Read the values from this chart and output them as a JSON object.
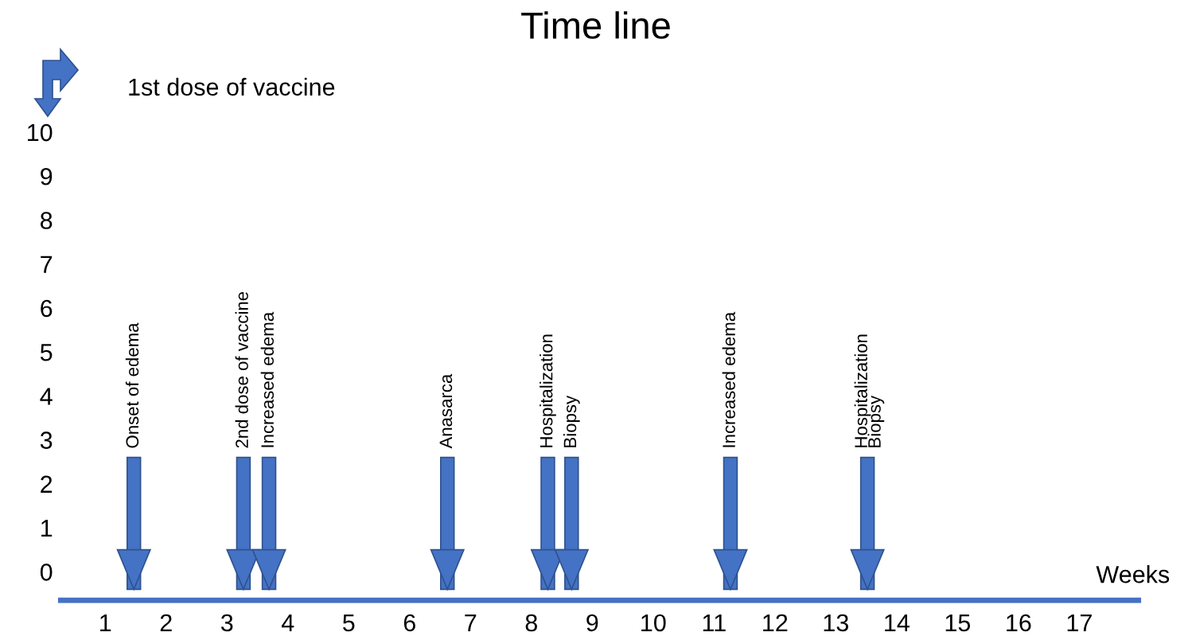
{
  "chart_data": {
    "type": "bar",
    "title": "Time line",
    "xlabel": "Weeks",
    "x": [
      1.47,
      3.27,
      3.69,
      6.62,
      8.27,
      8.66,
      11.27,
      13.52
    ],
    "base": [
      2.6,
      2.6,
      2.6,
      2.6,
      2.6,
      2.6,
      2.6,
      2.6
    ],
    "values": [
      -3.0,
      -3.0,
      -3.0,
      -3.0,
      -3.0,
      -3.0,
      -3.0,
      -3.0
    ],
    "color": "#4472c4",
    "xlim": [
      0.27,
      17.97
    ],
    "ylim": [
      -0.65,
      10
    ],
    "xticks": [
      1,
      2,
      3,
      4,
      5,
      6,
      7,
      8,
      9,
      10,
      11,
      12,
      13,
      14,
      15,
      16,
      17
    ],
    "yticks": [
      0,
      1,
      2,
      3,
      4,
      5,
      6,
      7,
      8,
      9,
      10
    ],
    "grid": false,
    "legend": false,
    "annotations": [
      "1st dose of vaccine",
      {
        "text": "Onset of edema",
        "x": 1.47,
        "y": 2.6
      },
      {
        "text": "2nd dose of vaccine",
        "x": 3.27,
        "y": 2.6
      },
      {
        "text": "Increased edema",
        "x": 3.69,
        "y": 2.6
      },
      {
        "text": "Anasarca",
        "x": 6.62,
        "y": 2.6
      },
      {
        "text": "Hospitalization",
        "x": 8.27,
        "y": 2.6
      },
      {
        "text": "Biopsy",
        "x": 8.66,
        "y": 2.6
      },
      {
        "text": "Increased edema",
        "x": 11.27,
        "y": 2.6
      },
      {
        "text": "Hospitalization",
        "x": 13.44,
        "y": 2.6
      },
      {
        "text": "Biopsy",
        "x": 13.66,
        "y": 2.6
      }
    ]
  }
}
